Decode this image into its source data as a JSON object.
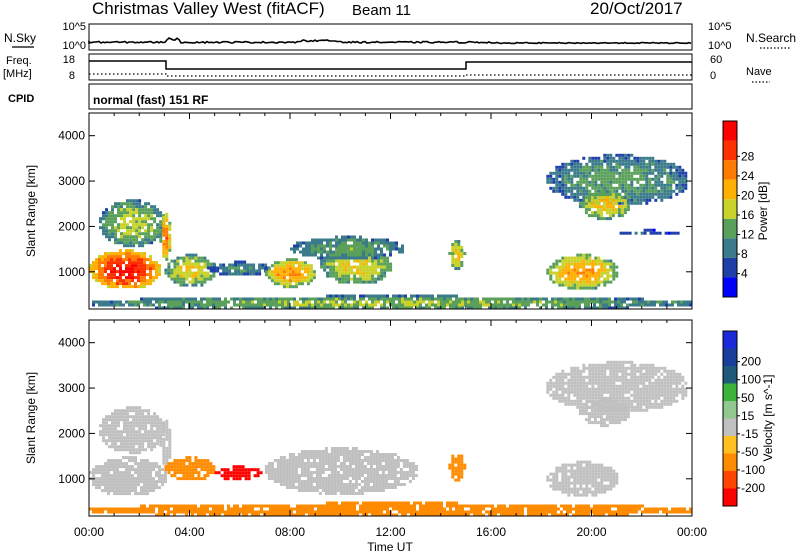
{
  "header": {
    "station": "Christmas Valley West (fitACF)",
    "beam": "Beam 11",
    "date": "20/Oct/2017"
  },
  "panels": {
    "nsky_label": "N.Sky",
    "nsearch_label": "N.Search",
    "noise_ticks": [
      "10^5",
      "10^0"
    ],
    "freq_label_1": "Freq.",
    "freq_label_2": "[MHz]",
    "freq_ticks": [
      "18",
      "8"
    ],
    "nave_label": "Nave",
    "nave_ticks": [
      "60",
      "0"
    ],
    "cpid_label": "CPID",
    "cpid_text": "normal (fast) 151 RF"
  },
  "colors": {
    "power": [
      "#0000ff",
      "#1e3fa8",
      "#3a7a8a",
      "#5aa05a",
      "#c8d22a",
      "#ffb000",
      "#ff7a00",
      "#ff3000",
      "#ff0000"
    ],
    "velocity": [
      "#ff0000",
      "#ff4500",
      "#ff8c00",
      "#ffc020",
      "#c0c0c0",
      "#90c890",
      "#3cb43c",
      "#1f5a7a",
      "#1a3f9a",
      "#1a2ad8"
    ],
    "gray": "#c0c0c0"
  },
  "chart_data": [
    {
      "type": "heatmap",
      "name": "power",
      "xlabel": "",
      "ylabel": "Slant Range [km]",
      "yticks": [
        "1000",
        "2000",
        "3000",
        "4000"
      ],
      "xlim": [
        0,
        24
      ],
      "ylim": [
        180,
        4500
      ],
      "colorbar": {
        "label": "Power [dB]",
        "ticks": [
          "4",
          "8",
          "12",
          "16",
          "20",
          "24",
          "28"
        ],
        "range": [
          0,
          30
        ]
      },
      "features": [
        {
          "t": [
            0.0,
            2.8
          ],
          "r": [
            650,
            1500
          ],
          "v": 27
        },
        {
          "t": [
            0.4,
            3.0
          ],
          "r": [
            1600,
            2600
          ],
          "v": 14
        },
        {
          "t": [
            2.8,
            3.2
          ],
          "r": [
            1300,
            2300
          ],
          "v": 22
        },
        {
          "t": [
            3.0,
            5.0
          ],
          "r": [
            700,
            1400
          ],
          "v": 16
        },
        {
          "t": [
            4.7,
            7.2
          ],
          "r": [
            950,
            1250
          ],
          "v": 9
        },
        {
          "t": [
            7.0,
            9.0
          ],
          "r": [
            700,
            1300
          ],
          "v": 20
        },
        {
          "t": [
            9.2,
            12.0
          ],
          "r": [
            750,
            1600
          ],
          "v": 16
        },
        {
          "t": [
            8.0,
            12.5
          ],
          "r": [
            1300,
            1800
          ],
          "v": 11
        },
        {
          "t": [
            14.3,
            14.9
          ],
          "r": [
            1100,
            1700
          ],
          "v": 17
        },
        {
          "t": [
            18.2,
            21.0
          ],
          "r": [
            650,
            1400
          ],
          "v": 19
        },
        {
          "t": [
            18.2,
            23.8
          ],
          "r": [
            2500,
            3600
          ],
          "v": 11
        },
        {
          "t": [
            19.5,
            21.5
          ],
          "r": [
            2200,
            2800
          ],
          "v": 17
        },
        {
          "t": [
            21.0,
            23.5
          ],
          "r": [
            1850,
            1950
          ],
          "v": 6
        },
        {
          "t": [
            0.0,
            24.0
          ],
          "r": [
            180,
            500
          ],
          "v": 13
        }
      ]
    },
    {
      "type": "heatmap",
      "name": "velocity",
      "xlabel": "Time UT",
      "ylabel": "Slant Range [km]",
      "xticks": [
        "00:00",
        "04:00",
        "08:00",
        "12:00",
        "16:00",
        "20:00",
        "00:00"
      ],
      "yticks": [
        "1000",
        "2000",
        "3000",
        "4000"
      ],
      "xlim": [
        0,
        24
      ],
      "ylim": [
        180,
        4500
      ],
      "colorbar": {
        "label": "Velocity [m s^-1]",
        "ticks": [
          "-200",
          "-100",
          "-50",
          "-15",
          "15",
          "50",
          "100",
          "200"
        ]
      },
      "features": [
        {
          "t": [
            0.0,
            3.0
          ],
          "r": [
            650,
            1500
          ],
          "v": 0
        },
        {
          "t": [
            0.4,
            3.0
          ],
          "r": [
            1600,
            2600
          ],
          "v": 0
        },
        {
          "t": [
            2.8,
            3.2
          ],
          "r": [
            1300,
            2300
          ],
          "v": 0
        },
        {
          "t": [
            3.0,
            5.0
          ],
          "r": [
            1000,
            1500
          ],
          "v": -40
        },
        {
          "t": [
            5.0,
            6.8
          ],
          "r": [
            1000,
            1300
          ],
          "v": -110
        },
        {
          "t": [
            7.0,
            13.0
          ],
          "r": [
            700,
            1700
          ],
          "v": 0
        },
        {
          "t": [
            14.3,
            14.9
          ],
          "r": [
            1000,
            1600
          ],
          "v": -40
        },
        {
          "t": [
            18.2,
            21.0
          ],
          "r": [
            650,
            1400
          ],
          "v": 0
        },
        {
          "t": [
            18.2,
            23.8
          ],
          "r": [
            2500,
            3600
          ],
          "v": 0
        },
        {
          "t": [
            19.5,
            21.5
          ],
          "r": [
            2200,
            2800
          ],
          "v": 0
        },
        {
          "t": [
            0.0,
            24.0
          ],
          "r": [
            180,
            500
          ],
          "v": -30
        }
      ]
    }
  ]
}
